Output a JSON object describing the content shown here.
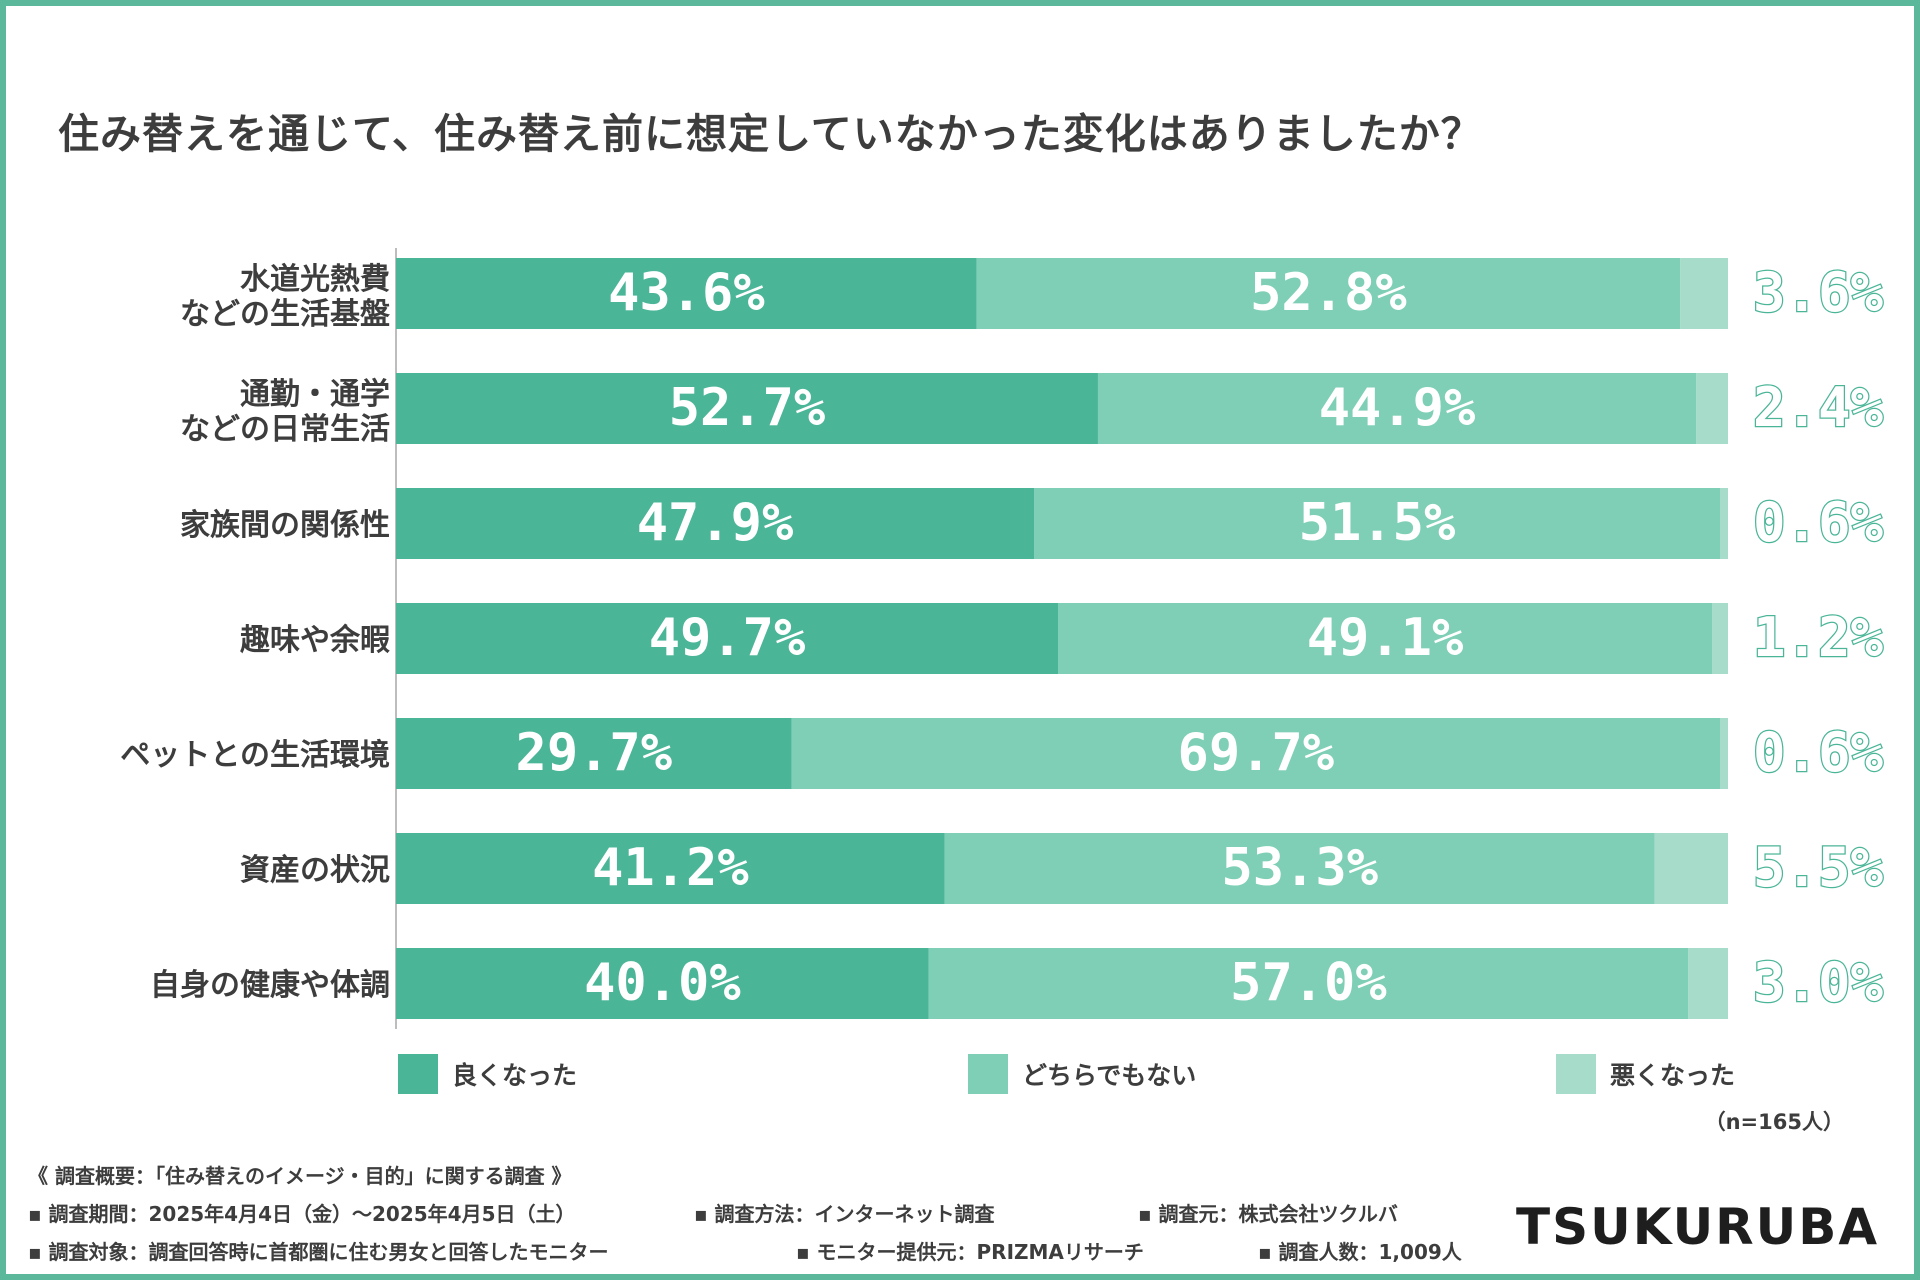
{
  "colors": {
    "good": "#4bb598",
    "neutral": "#7ecfb5",
    "bad": "#a8dcca",
    "frame": "#5cb89b"
  },
  "chart_data": {
    "type": "bar",
    "orientation": "horizontal-stacked-100",
    "title": "住み替えを通じて、住み替え前に想定していなかった変化はありましたか？",
    "categories": [
      [
        "水道光熱費",
        "などの生活基盤"
      ],
      [
        "通勤・通学",
        "などの日常生活"
      ],
      [
        "家族間の関係性"
      ],
      [
        "趣味や余暇"
      ],
      [
        "ペットとの生活環境"
      ],
      [
        "資産の状況"
      ],
      [
        "自身の健康や体調"
      ]
    ],
    "series": [
      {
        "name": "良くなった",
        "values": [
          43.6,
          52.7,
          47.9,
          49.7,
          29.7,
          41.2,
          40.0
        ]
      },
      {
        "name": "どちらでもない",
        "values": [
          52.8,
          44.9,
          51.5,
          49.1,
          69.7,
          53.3,
          57.0
        ]
      },
      {
        "name": "悪くなった",
        "values": [
          3.6,
          2.4,
          0.6,
          1.2,
          0.6,
          5.5,
          3.0
        ]
      }
    ],
    "labels": [
      [
        "43.6%",
        "52.8%",
        "3.6%"
      ],
      [
        "52.7%",
        "44.9%",
        "2.4%"
      ],
      [
        "47.9%",
        "51.5%",
        "0.6%"
      ],
      [
        "49.7%",
        "49.1%",
        "1.2%"
      ],
      [
        "29.7%",
        "69.7%",
        "0.6%"
      ],
      [
        "41.2%",
        "53.3%",
        "5.5%"
      ],
      [
        "40.0%",
        "57.0%",
        "3.0%"
      ]
    ],
    "xlim": [
      0,
      100
    ]
  },
  "legend": {
    "good": "良くなった",
    "neutral": "どちらでもない",
    "bad": "悪くなった"
  },
  "sample_size": "（n=165人）",
  "notes": {
    "summary": "《 調査概要：「住み替えのイメージ・目的」に関する調査 》",
    "period": "▪ 調査期間：2025年4月4日（金）～2025年4月5日（土）",
    "method": "▪ 調査方法：インターネット調査",
    "source": "▪ 調査元：株式会社ツクルバ",
    "target": "▪ 調査対象：調査回答時に首都圏に住む男女と回答したモニター",
    "provider": "▪ モニター提供元：PRIZMAリサーチ",
    "count": "▪ 調査人数：1,009人"
  },
  "logo": "TSUKURUBA"
}
